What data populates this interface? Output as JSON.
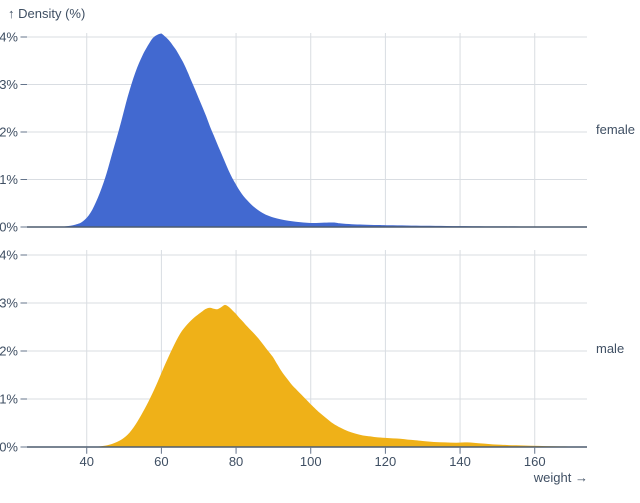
{
  "chart_data": {
    "type": "area",
    "subtype": "faceted-density",
    "ylabel": "↑ Density (%)",
    "xlabel": "weight →",
    "x_domain": [
      24,
      174
    ],
    "y_domain_pct": [
      0,
      4.2
    ],
    "x_ticks": [
      40,
      60,
      80,
      100,
      120,
      140,
      160
    ],
    "y_ticks_pct": [
      0,
      1,
      2,
      3,
      4
    ],
    "y_tick_suffix": "%",
    "grid": true,
    "facet_label_position": "right",
    "colors": {
      "grid": "#d9dde2",
      "axis": "#4d5c6e",
      "tick": "#64748b",
      "text": "#3f4f63",
      "background": "#ffffff"
    },
    "series": [
      {
        "name": "female",
        "color": "#4269d0",
        "peak": {
          "weight": 60,
          "density_pct": 4.07
        },
        "points": [
          [
            30,
            0
          ],
          [
            34,
            0.01
          ],
          [
            37,
            0.05
          ],
          [
            39,
            0.12
          ],
          [
            41,
            0.3
          ],
          [
            43,
            0.62
          ],
          [
            45,
            1.05
          ],
          [
            47,
            1.6
          ],
          [
            49,
            2.15
          ],
          [
            51,
            2.75
          ],
          [
            53,
            3.25
          ],
          [
            55,
            3.62
          ],
          [
            57,
            3.9
          ],
          [
            58,
            4.0
          ],
          [
            59,
            4.05
          ],
          [
            60,
            4.07
          ],
          [
            61,
            4.01
          ],
          [
            62,
            3.93
          ],
          [
            63,
            3.83
          ],
          [
            64,
            3.72
          ],
          [
            65,
            3.58
          ],
          [
            66,
            3.44
          ],
          [
            67,
            3.27
          ],
          [
            68,
            3.08
          ],
          [
            69,
            2.9
          ],
          [
            70,
            2.71
          ],
          [
            71,
            2.52
          ],
          [
            72,
            2.33
          ],
          [
            73,
            2.12
          ],
          [
            74,
            1.93
          ],
          [
            75,
            1.74
          ],
          [
            76,
            1.56
          ],
          [
            77,
            1.37
          ],
          [
            78,
            1.19
          ],
          [
            79,
            1.03
          ],
          [
            80,
            0.89
          ],
          [
            81,
            0.76
          ],
          [
            82,
            0.65
          ],
          [
            83,
            0.56
          ],
          [
            84,
            0.48
          ],
          [
            85,
            0.41
          ],
          [
            86,
            0.35
          ],
          [
            87,
            0.3
          ],
          [
            88,
            0.26
          ],
          [
            90,
            0.2
          ],
          [
            92,
            0.16
          ],
          [
            94,
            0.13
          ],
          [
            96,
            0.11
          ],
          [
            98,
            0.095
          ],
          [
            100,
            0.085
          ],
          [
            103,
            0.09
          ],
          [
            106,
            0.095
          ],
          [
            108,
            0.075
          ],
          [
            111,
            0.06
          ],
          [
            114,
            0.05
          ],
          [
            118,
            0.042
          ],
          [
            122,
            0.036
          ],
          [
            127,
            0.03
          ],
          [
            132,
            0.025
          ],
          [
            138,
            0.02
          ],
          [
            145,
            0.016
          ],
          [
            152,
            0.012
          ],
          [
            160,
            0.009
          ],
          [
            168,
            0.007
          ],
          [
            174,
            0.005
          ]
        ]
      },
      {
        "name": "male",
        "color": "#efb118",
        "peak": {
          "weight": 77,
          "density_pct": 2.96
        },
        "points": [
          [
            40,
            0
          ],
          [
            43,
            0.01
          ],
          [
            45,
            0.03
          ],
          [
            47,
            0.07
          ],
          [
            49,
            0.14
          ],
          [
            51,
            0.26
          ],
          [
            53,
            0.46
          ],
          [
            55,
            0.72
          ],
          [
            57,
            1.02
          ],
          [
            59,
            1.36
          ],
          [
            61,
            1.72
          ],
          [
            63,
            2.06
          ],
          [
            65,
            2.36
          ],
          [
            67,
            2.56
          ],
          [
            69,
            2.71
          ],
          [
            71,
            2.83
          ],
          [
            72,
            2.88
          ],
          [
            73,
            2.9
          ],
          [
            74,
            2.88
          ],
          [
            75,
            2.87
          ],
          [
            76,
            2.91
          ],
          [
            77,
            2.96
          ],
          [
            78,
            2.92
          ],
          [
            79,
            2.85
          ],
          [
            80,
            2.77
          ],
          [
            81,
            2.68
          ],
          [
            82,
            2.6
          ],
          [
            83,
            2.51
          ],
          [
            84,
            2.43
          ],
          [
            85,
            2.35
          ],
          [
            86,
            2.26
          ],
          [
            87,
            2.16
          ],
          [
            88,
            2.06
          ],
          [
            89,
            1.96
          ],
          [
            90,
            1.86
          ],
          [
            91,
            1.73
          ],
          [
            92,
            1.6
          ],
          [
            93,
            1.49
          ],
          [
            94,
            1.39
          ],
          [
            95,
            1.29
          ],
          [
            96,
            1.21
          ],
          [
            97,
            1.13
          ],
          [
            98,
            1.05
          ],
          [
            99,
            0.97
          ],
          [
            100,
            0.89
          ],
          [
            102,
            0.74
          ],
          [
            104,
            0.61
          ],
          [
            106,
            0.49
          ],
          [
            108,
            0.4
          ],
          [
            110,
            0.33
          ],
          [
            112,
            0.28
          ],
          [
            114,
            0.24
          ],
          [
            116,
            0.22
          ],
          [
            118,
            0.2
          ],
          [
            120,
            0.19
          ],
          [
            122,
            0.18
          ],
          [
            124,
            0.17
          ],
          [
            126,
            0.155
          ],
          [
            128,
            0.14
          ],
          [
            130,
            0.125
          ],
          [
            133,
            0.105
          ],
          [
            136,
            0.095
          ],
          [
            139,
            0.09
          ],
          [
            142,
            0.095
          ],
          [
            145,
            0.08
          ],
          [
            148,
            0.06
          ],
          [
            151,
            0.045
          ],
          [
            155,
            0.035
          ],
          [
            159,
            0.025
          ],
          [
            163,
            0.018
          ],
          [
            167,
            0.013
          ],
          [
            171,
            0.009
          ],
          [
            174,
            0.007
          ]
        ]
      }
    ]
  }
}
